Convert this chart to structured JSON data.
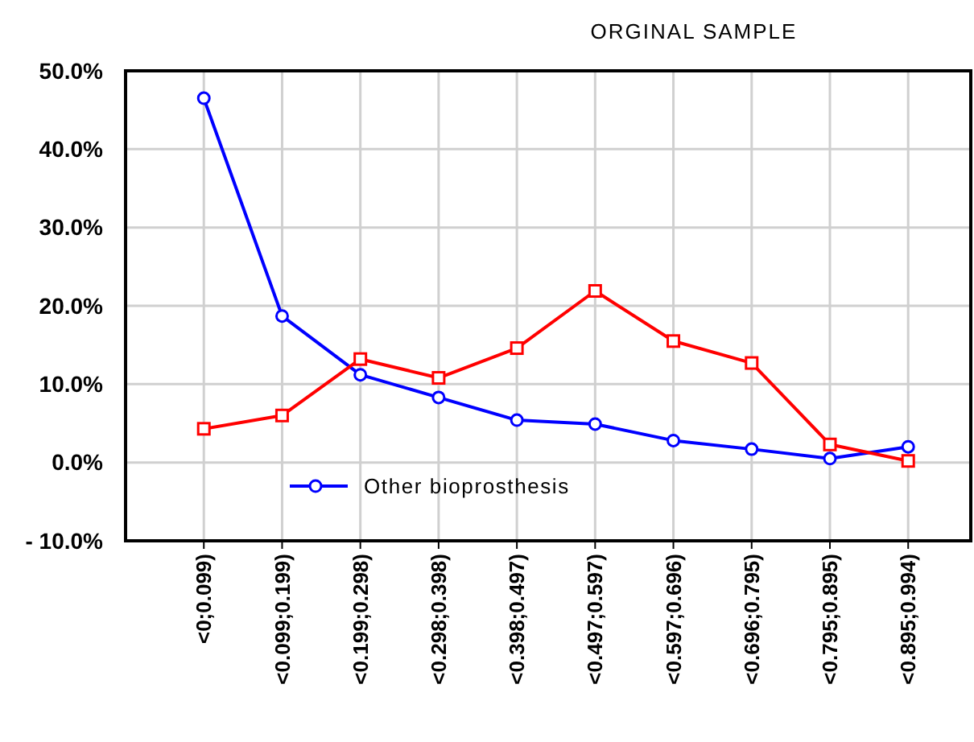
{
  "chart_data": {
    "type": "line",
    "title": "ORGINAL SAMPLE",
    "categories": [
      "<0;0.099)",
      "<0.099;0.199)",
      "<0.199;0.298)",
      "<0.298;0.398)",
      "<0.398;0.497)",
      "<0.497;0.597)",
      "<0.597;0.696)",
      "<0.696;0.795)",
      "<0.795;0.895)",
      "<0.895;0.994)"
    ],
    "series": [
      {
        "name": "Other bioprosthesis",
        "color": "#0000ff",
        "marker": "circle",
        "values": [
          46.5,
          18.7,
          11.2,
          8.3,
          5.4,
          4.9,
          2.8,
          1.7,
          0.5,
          2.0
        ]
      },
      {
        "color": "#ff0000",
        "marker": "square",
        "values": [
          4.3,
          6.0,
          13.2,
          10.8,
          14.6,
          21.9,
          15.5,
          12.7,
          2.3,
          0.2
        ]
      }
    ],
    "ylim": [
      -10,
      50
    ],
    "yticks": [
      {
        "value": -10,
        "label": "- 10.0%"
      },
      {
        "value": 0,
        "label": "0.0%"
      },
      {
        "value": 10,
        "label": "10.0%"
      },
      {
        "value": 20,
        "label": "20.0%"
      },
      {
        "value": 30,
        "label": "30.0%"
      },
      {
        "value": 40,
        "label": "40.0%"
      },
      {
        "value": 50,
        "label": "50.0%"
      }
    ],
    "grid": true,
    "legend": "bottom left",
    "line_style": "solid"
  }
}
